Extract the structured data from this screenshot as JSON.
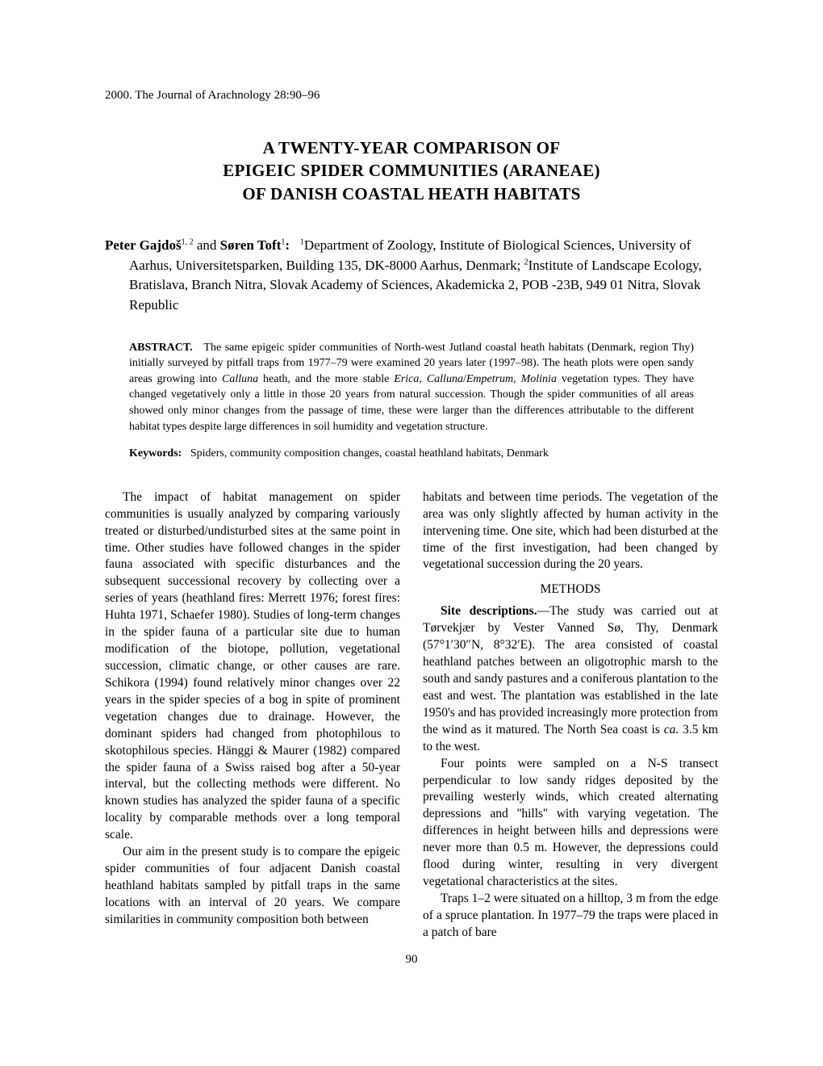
{
  "running_header": "2000. The Journal of Arachnology 28:90–96",
  "title": {
    "line1": "A TWENTY-YEAR COMPARISON OF",
    "line2": "EPIGEIC SPIDER COMMUNITIES (ARANEAE)",
    "line3": "OF DANISH COASTAL HEATH HABITATS"
  },
  "authors": {
    "name1": "Peter Gajdoš",
    "sup1": "1, 2",
    "conj": " and ",
    "name2": "Søren Toft",
    "sup2": "1",
    "colon": ":",
    "affil_sup1": "1",
    "affil1": "Department of Zoology, Institute of Biological Sciences, University of Aarhus, Universitetsparken, Building 135, DK-8000 Aarhus, Denmark; ",
    "affil_sup2": "2",
    "affil2": "Institute of Landscape Ecology, Bratislava, Branch Nitra, Slovak Academy of Sciences, Akademicka 2, POB -23B, 949 01 Nitra, Slovak Republic"
  },
  "abstract": {
    "label": "ABSTRACT.",
    "text_a": "The same epigeic spider communities of North-west Jutland coastal heath habitats (Denmark, region Thy) initially surveyed by pitfall traps from 1977–79 were examined 20 years later (1997–98). The heath plots were open sandy areas growing into ",
    "italic1": "Calluna",
    "text_b": " heath, and the more stable ",
    "italic2": "Erica",
    "text_c": ", ",
    "italic3": "Calluna",
    "text_d": "/",
    "italic4": "Empetrum",
    "text_e": ", ",
    "italic5": "Molinia",
    "text_f": " vegetation types. They have changed vegetatively only a little in those 20 years from natural succession. Though the spider communities of all areas showed only minor changes from the passage of time, these were larger than the differences attributable to the different habitat types despite large differences in soil humidity and vegetation structure."
  },
  "keywords": {
    "label": "Keywords:",
    "text": "Spiders, community composition changes, coastal heathland habitats, Denmark"
  },
  "col_left": {
    "p1": "The impact of habitat management on spider communities is usually analyzed by comparing variously treated or disturbed/undisturbed sites at the same point in time. Other studies have followed changes in the spider fauna associated with specific disturbances and the subsequent successional recovery by collecting over a series of years (heathland fires: Merrett 1976; forest fires: Huhta 1971, Schaefer 1980). Studies of long-term changes in the spider fauna of a particular site due to human modification of the biotope, pollution, vegetational succession, climatic change, or other causes are rare. Schikora (1994) found relatively minor changes over 22 years in the spider species of a bog in spite of prominent vegetation changes due to drainage. However, the dominant spiders had changed from photophilous to skotophilous species. Hänggi & Maurer (1982) compared the spider fauna of a Swiss raised bog after a 50-year interval, but the collecting methods were different. No known studies has analyzed the spider fauna of a specific locality by comparable methods over a long temporal scale.",
    "p2": "Our aim in the present study is to compare the epigeic spider communities of four adjacent Danish coastal heathland habitats sampled by pitfall traps in the same locations with an interval of 20 years. We compare similarities in community composition both between"
  },
  "col_right": {
    "p1": "habitats and between time periods. The vegetation of the area was only slightly affected by human activity in the intervening time. One site, which had been disturbed at the time of the first investigation, had been changed by vegetational succession during the 20 years.",
    "methods_heading": "METHODS",
    "p2_label": "Site descriptions.",
    "p2_a": "—The study was carried out at Tørvekjær by Vester Vanned Sø, Thy, Denmark (57°1′30″N, 8°32′E). The area consisted of coastal heathland patches between an oligotrophic marsh to the south and sandy pastures and a coniferous plantation to the east and west. The plantation was established in the late 1950's and has provided increasingly more protection from the wind as it matured. The North Sea coast is ",
    "p2_italic": "ca.",
    "p2_b": " 3.5 km to the west.",
    "p3": "Four points were sampled on a N-S transect perpendicular to low sandy ridges deposited by the prevailing westerly winds, which created alternating depressions and ''hills'' with varying vegetation. The differences in height between hills and depressions were never more than 0.5 m. However, the depressions could flood during winter, resulting in very divergent vegetational characteristics at the sites.",
    "p4": "Traps 1–2 were situated on a hilltop, 3 m from the edge of a spruce plantation. In 1977–79 the traps were placed in a patch of bare"
  },
  "page_number": "90"
}
